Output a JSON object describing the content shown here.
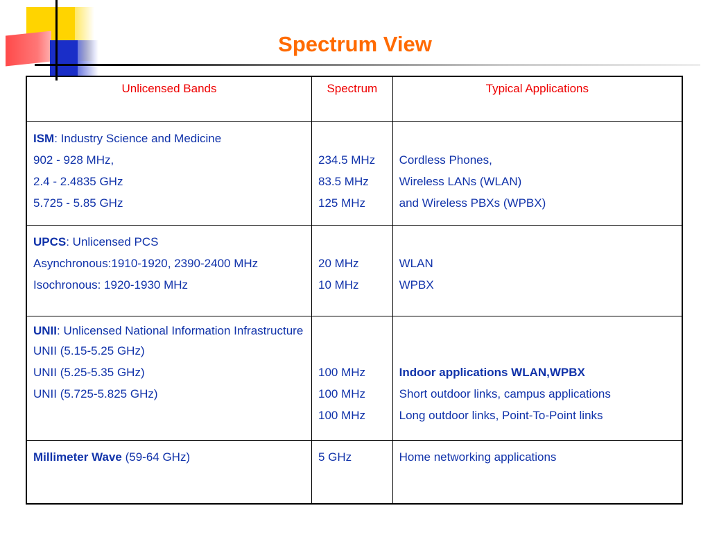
{
  "title": "Spectrum View",
  "table": {
    "headers": [
      "Unlicensed Bands",
      "Spectrum",
      "Typical Applications"
    ],
    "rows": [
      {
        "band_name": "ISM",
        "band_desc": ": Industry Science and Medicine",
        "band_lines": [
          "902 - 928 MHz,",
          "2.4 - 2.4835 GHz",
          "5.725 - 5.85 GHz"
        ],
        "spectrum": [
          "234.5 MHz",
          "83.5 MHz",
          "125 MHz"
        ],
        "applications": [
          "Cordless Phones,",
          "Wireless LANs (WLAN)",
          "and Wireless PBXs (WPBX)"
        ]
      },
      {
        "band_name": "UPCS",
        "band_desc": ": Unlicensed PCS",
        "band_lines": [
          "Asynchronous:1910-1920, 2390-2400 MHz",
          "Isochronous: 1920-1930 MHz"
        ],
        "spectrum": [
          "20 MHz",
          "10 MHz"
        ],
        "applications": [
          "WLAN",
          "WPBX"
        ]
      },
      {
        "band_name": "UNII",
        "band_desc": ": Unlicensed National Information Infrastructure",
        "band_lines": [
          "UNII (5.15-5.25 GHz)",
          "UNII (5.25-5.35 GHz)",
          "UNII (5.725-5.825 GHz)"
        ],
        "spectrum": [
          "100 MHz",
          "100 MHz",
          "100 MHz"
        ],
        "applications": [
          "Indoor applications WLAN,WPBX",
          "Short outdoor links, campus applications",
          "Long outdoor links, Point-To-Point links"
        ]
      },
      {
        "band_name": "Millimeter Wave",
        "band_desc": " (59-64 GHz)",
        "band_lines": [],
        "spectrum": [
          "5 GHz"
        ],
        "applications": [
          "Home networking applications"
        ]
      }
    ]
  },
  "colors": {
    "title": "#ff6a00",
    "header_text": "#ee0000",
    "body_text": "#1133aa"
  }
}
